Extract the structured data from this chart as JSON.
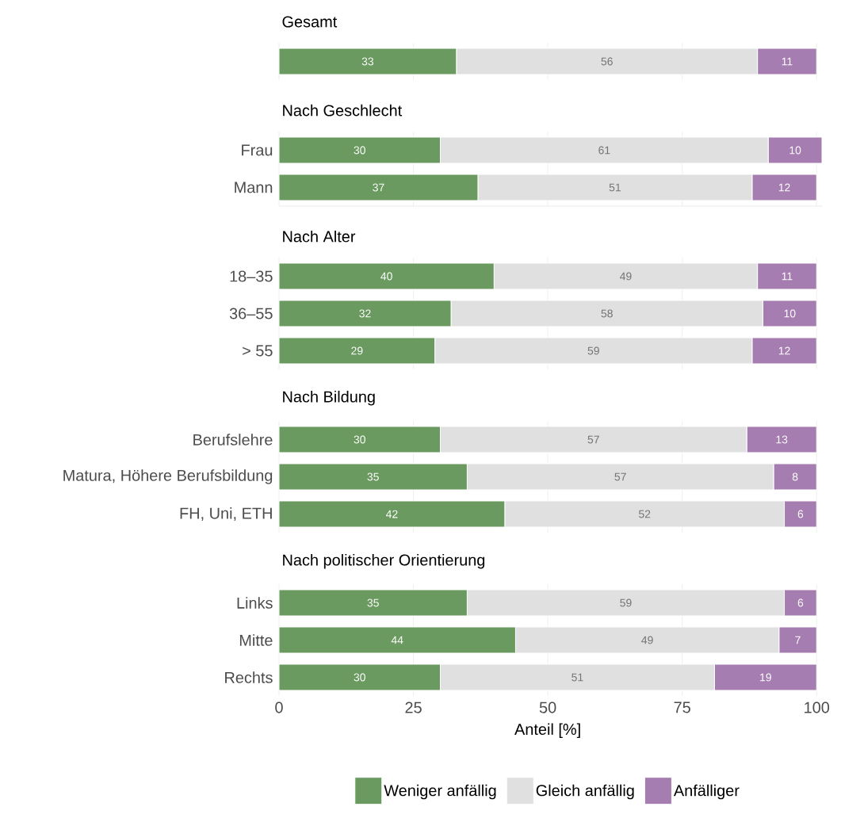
{
  "chart_data": [
    {
      "type": "bar",
      "orientation": "horizontal",
      "stacked": true,
      "title": "Gesamt",
      "categories": [
        null
      ],
      "xlim": [
        0,
        100
      ],
      "xticks": [
        0,
        25,
        50,
        75,
        100
      ],
      "grid": "x",
      "tick_labels": "y",
      "data_labels": true,
      "series": [
        {
          "color": "#6a9a5f",
          "values": [
            33
          ]
        },
        {
          "color": "#e0e0e0",
          "values": [
            56
          ]
        },
        {
          "color": "#a67db0",
          "values": [
            11
          ]
        }
      ]
    },
    {
      "type": "bar",
      "orientation": "horizontal",
      "stacked": true,
      "title": "Nach Geschlecht",
      "categories": [
        "Frau",
        "Mann"
      ],
      "xlim": [
        0,
        101
      ],
      "xticks": [
        0,
        25,
        50,
        75,
        100
      ],
      "grid": "x",
      "tick_labels": "y",
      "data_labels": true,
      "series": [
        {
          "color": "#6a9a5f",
          "values": [
            30,
            37
          ]
        },
        {
          "color": "#e0e0e0",
          "values": [
            61,
            51
          ]
        },
        {
          "color": "#a67db0",
          "values": [
            10,
            12
          ]
        }
      ]
    },
    {
      "type": "bar",
      "orientation": "horizontal",
      "stacked": true,
      "title": "Nach Alter",
      "categories": [
        "18–35",
        "36–55",
        "> 55"
      ],
      "xlim": [
        0,
        100
      ],
      "xticks": [
        0,
        25,
        50,
        75,
        100
      ],
      "grid": "x",
      "tick_labels": "y",
      "data_labels": true,
      "series": [
        {
          "color": "#6a9a5f",
          "values": [
            40,
            32,
            29
          ]
        },
        {
          "color": "#e0e0e0",
          "values": [
            49,
            58,
            59
          ]
        },
        {
          "color": "#a67db0",
          "values": [
            11,
            10,
            12
          ]
        }
      ]
    },
    {
      "type": "bar",
      "orientation": "horizontal",
      "stacked": true,
      "title": "Nach Bildung",
      "categories": [
        "Berufslehre",
        "Matura, Höhere Berufsbildung",
        "FH, Uni, ETH"
      ],
      "xlim": [
        0,
        100
      ],
      "xticks": [
        0,
        25,
        50,
        75,
        100
      ],
      "grid": "x",
      "tick_labels": "y",
      "data_labels": true,
      "series": [
        {
          "color": "#6a9a5f",
          "values": [
            30,
            35,
            42
          ]
        },
        {
          "color": "#e0e0e0",
          "values": [
            57,
            57,
            52
          ]
        },
        {
          "color": "#a67db0",
          "values": [
            13,
            8,
            6
          ]
        }
      ]
    },
    {
      "type": "bar",
      "orientation": "horizontal",
      "stacked": true,
      "title": "Nach politischer Orientierung",
      "categories": [
        "Links",
        "Mitte",
        "Rechts"
      ],
      "xlim": [
        0,
        100
      ],
      "xticks": [
        0,
        25,
        50,
        75,
        100
      ],
      "grid": "x",
      "data_labels": true,
      "xlabel": "Anteil [%]",
      "legend": "bottom",
      "series": [
        {
          "name": "Weniger anfällig",
          "color": "#6a9a5f",
          "values": [
            35,
            44,
            30
          ]
        },
        {
          "name": "Gleich anfällig",
          "color": "#e0e0e0",
          "values": [
            59,
            49,
            51
          ]
        },
        {
          "name": "Anfälliger",
          "color": "#a67db0",
          "values": [
            6,
            7,
            19
          ]
        }
      ]
    }
  ]
}
